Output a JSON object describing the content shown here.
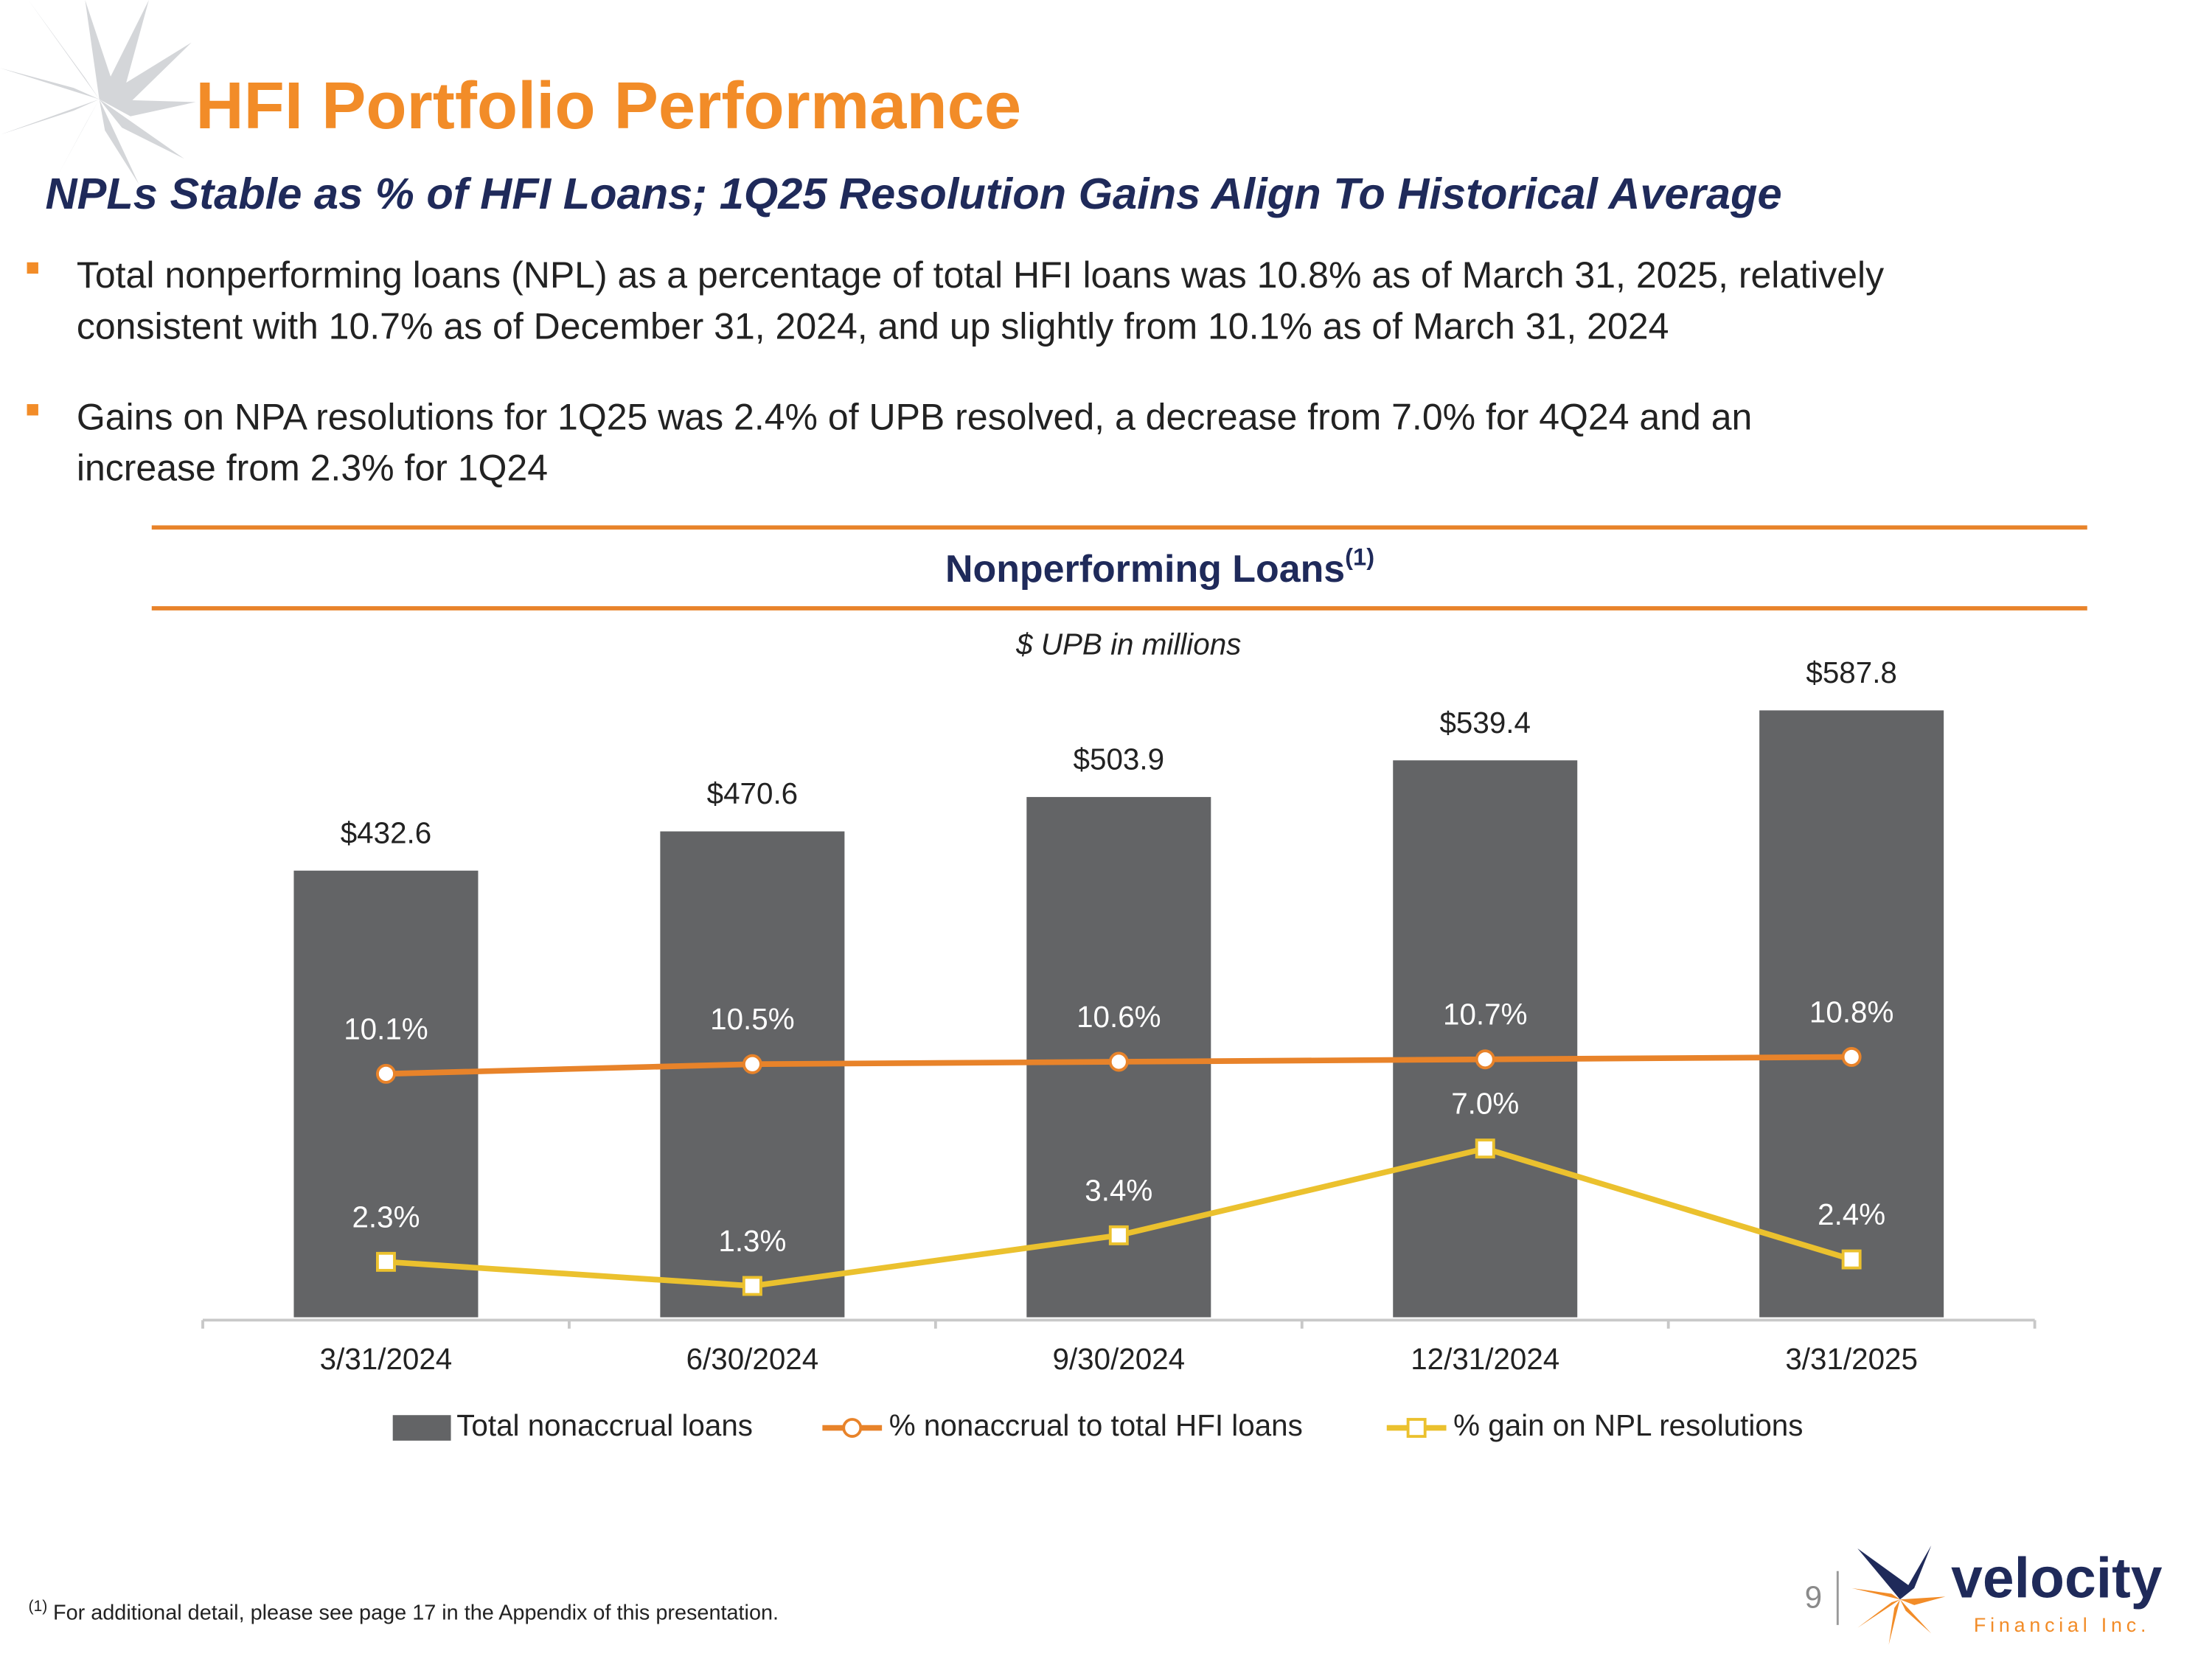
{
  "header": {
    "title": "HFI Portfolio Performance",
    "subtitle": "NPLs Stable as % of HFI Loans; 1Q25 Resolution Gains Align To Historical Average"
  },
  "bullets": [
    [
      "Total nonperforming loans (NPL) as a percentage of total HFI loans was 10.8% as of March 31, 2025, relatively",
      "consistent with 10.7% as of December 31, 2024, and up slightly from 10.1% as of March 31, 2024"
    ],
    [
      "Gains on NPA resolutions for 1Q25 was 2.4% of UPB resolved, a decrease from 7.0% for 4Q24 and an",
      "increase from 2.3% for 1Q24"
    ]
  ],
  "chart_data": {
    "type": "bar",
    "title": "Nonperforming Loans",
    "title_note": "(1)",
    "subtitle": "$ UPB in millions",
    "categories": [
      "3/31/2024",
      "6/30/2024",
      "9/30/2024",
      "12/31/2024",
      "3/31/2025"
    ],
    "series": [
      {
        "name": "Total nonaccrual loans",
        "type": "bar",
        "color": "#636466",
        "values": [
          432.6,
          470.6,
          503.9,
          539.4,
          587.8
        ],
        "value_labels": [
          "$432.6",
          "$470.6",
          "$503.9",
          "$539.4",
          "$587.8"
        ]
      },
      {
        "name": "% nonaccrual to total HFI loans",
        "type": "line",
        "marker": "circle",
        "color": "#E8832A",
        "values": [
          10.1,
          10.5,
          10.6,
          10.7,
          10.8
        ],
        "value_labels": [
          "10.1%",
          "10.5%",
          "10.6%",
          "10.7%",
          "10.8%"
        ]
      },
      {
        "name": "% gain on NPL resolutions",
        "type": "line",
        "marker": "square",
        "color": "#EBC12E",
        "values": [
          2.3,
          1.3,
          3.4,
          7.0,
          2.4
        ],
        "value_labels": [
          "2.3%",
          "1.3%",
          "3.4%",
          "7.0%",
          "2.4%"
        ]
      }
    ],
    "legend": "bottom"
  },
  "footnote": {
    "marker": "(1)",
    "text": "For additional detail, please see page 17 in the Appendix of this presentation."
  },
  "page_number": 9,
  "logo": {
    "name": "velocity",
    "tagline": "Financial Inc."
  }
}
